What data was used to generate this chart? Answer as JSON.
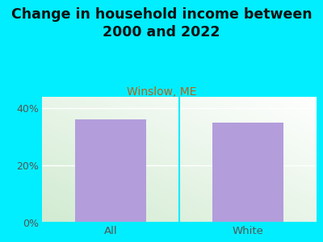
{
  "title": "Change in household income between\n2000 and 2022",
  "subtitle": "Winslow, ME",
  "categories": [
    "All",
    "White"
  ],
  "values": [
    36.0,
    35.0
  ],
  "bar_color": "#b39ddb",
  "background_color": "#00eeff",
  "title_fontsize": 12.5,
  "subtitle_fontsize": 10,
  "ylim": [
    0,
    44
  ],
  "yticks": [
    0,
    20,
    40
  ],
  "ytick_labels": [
    "0%",
    "20%",
    "40%"
  ]
}
